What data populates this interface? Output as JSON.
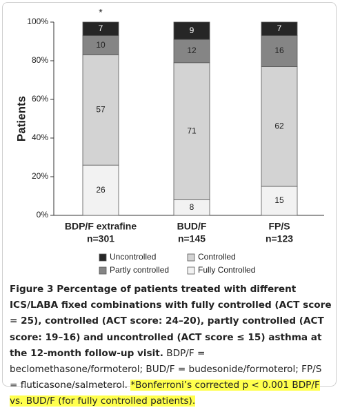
{
  "chart_data": {
    "type": "stacked_bar",
    "y_label": "Patients",
    "categories": [
      "BDP/F extrafine",
      "BUD/F",
      "FP/S"
    ],
    "category_sublabels": [
      "n=301",
      "n=145",
      "n=123"
    ],
    "series": [
      {
        "name": "Fully Controlled",
        "color": "#f2f2f2",
        "values": [
          26,
          8,
          15
        ]
      },
      {
        "name": "Controlled",
        "color": "#d3d3d3",
        "values": [
          57,
          71,
          62
        ]
      },
      {
        "name": "Partly controlled",
        "color": "#858585",
        "values": [
          10,
          12,
          16
        ]
      },
      {
        "name": "Uncontrolled",
        "color": "#262626",
        "values": [
          7,
          9,
          7
        ]
      }
    ],
    "ylim": [
      0,
      100
    ],
    "yticks": [
      {
        "value": 0,
        "label": "0%"
      },
      {
        "value": 20,
        "label": "20%"
      },
      {
        "value": 40,
        "label": "40%"
      },
      {
        "value": 60,
        "label": "60%"
      },
      {
        "value": 80,
        "label": "80%"
      },
      {
        "value": 100,
        "label": "100%"
      }
    ],
    "annotation": "*"
  },
  "caption": {
    "bold": "Figure 3 Percentage of patients treated with different ICS/LABA fixed combinations with fully controlled (ACT score = 25), controlled (ACT score: 24–20), partly controlled (ACT score: 19–16) and uncontrolled (ACT score ≤ 15) asthma at the 12-month follow-up visit.",
    "text": "BDP/F = beclomethasone/formoterol; BUD/F = budesonide/formoterol; FP/S = fluticasone/salmeterol.",
    "highlight": "*Bonferroni’s corrected p < 0.001 BDP/F vs. BUD/F (for fully controlled patients)."
  }
}
